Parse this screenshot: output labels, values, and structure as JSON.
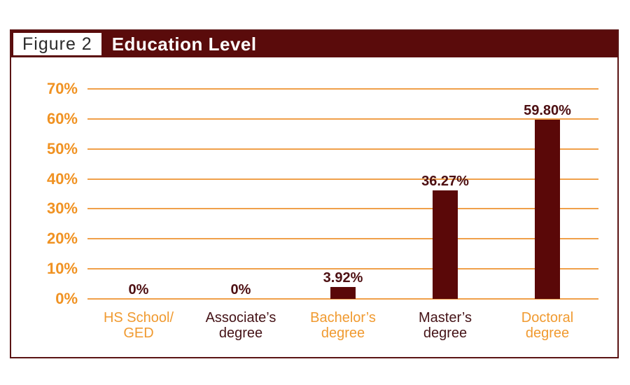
{
  "figure": {
    "tag": "Figure 2",
    "title": "Education Level"
  },
  "colors": {
    "banner_maroon": "#5a0b0b",
    "bar_maroon": "#5a0808",
    "border_maroon": "#5a1414",
    "axis_orange": "#f09222",
    "gridline_orange": "#f0a04a",
    "dark_category_label": "#451317",
    "value_label": "#4d0f12",
    "figure_tag_text": "#2b2b2b"
  },
  "chart_data": {
    "type": "bar",
    "title": "Education Level",
    "categories": [
      "HS School/\nGED",
      "Associate’s\ndegree",
      "Bachelor’s\ndegree",
      "Master’s\ndegree",
      "Doctoral\ndegree"
    ],
    "values": [
      0,
      0,
      3.92,
      36.27,
      59.8
    ],
    "value_labels": [
      "0%",
      "0%",
      "3.92%",
      "36.27%",
      "59.80%"
    ],
    "category_label_colors": [
      "#f09a30",
      "#451317",
      "#f09a30",
      "#451317",
      "#f09a30"
    ],
    "bar_color": "#5a0808",
    "yticks": [
      0,
      10,
      20,
      30,
      40,
      50,
      60,
      70
    ],
    "ytick_labels": [
      "0%",
      "10%",
      "20%",
      "30%",
      "40%",
      "50%",
      "60%",
      "70%"
    ],
    "ylim": [
      0,
      70
    ],
    "xlabel": "",
    "ylabel": "",
    "grid": "horizontal",
    "legend": "none"
  }
}
